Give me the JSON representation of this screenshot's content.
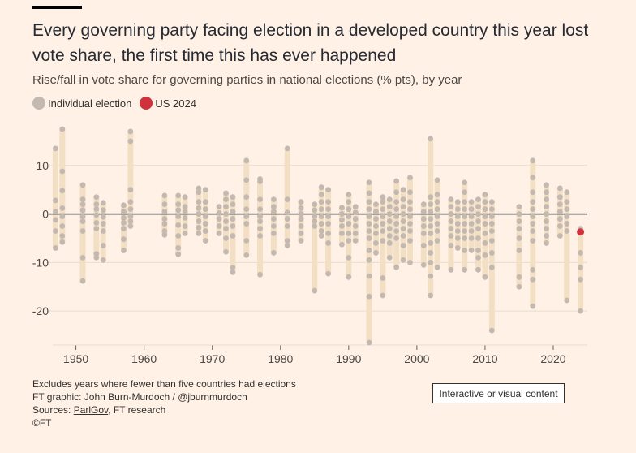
{
  "header": {
    "title": "Every governing party facing election in a developed country this year lost vote share, the first time this has ever happened",
    "subtitle": "Rise/fall in vote share for governing parties in national elections (% pts), by year"
  },
  "legend": {
    "items": [
      {
        "label": "Individual election",
        "color": "#c4b9b0"
      },
      {
        "label": "US 2024",
        "color": "#d0313d"
      }
    ]
  },
  "colors": {
    "background": "#fff1e5",
    "range_bar": "#f2dfc4",
    "dot": "#c4b9b0",
    "highlight": "#d0313d",
    "grid": "#e9dccf",
    "zero_line": "#33302e"
  },
  "chart_data": {
    "type": "scatter",
    "xlim": [
      1946,
      2025
    ],
    "ylim": [
      -27,
      19
    ],
    "x_ticks": [
      "1950",
      "1960",
      "1970",
      "1980",
      "1990",
      "2000",
      "2010",
      "2020"
    ],
    "y_ticks": [
      "10",
      "0",
      "-10",
      "-20"
    ],
    "grid": true,
    "legend_position": "top-left",
    "series": [
      {
        "name": "Individual election",
        "points": [
          {
            "year": 1947,
            "values": [
              13.5,
              2.8,
              0.5,
              -1.2,
              -3.5,
              -7
            ]
          },
          {
            "year": 1948,
            "values": [
              17.5,
              8.8,
              4.8,
              1.2,
              -0.5,
              -2.5,
              -4.5,
              -5.8
            ]
          },
          {
            "year": 1951,
            "values": [
              6,
              3,
              2,
              0.8,
              -0.5,
              -1.5,
              -3.5,
              -9,
              -13.8
            ]
          },
          {
            "year": 1953,
            "values": [
              3.5,
              2,
              1,
              -0.2,
              -1.8,
              -3,
              -8.2,
              -9
            ]
          },
          {
            "year": 1954,
            "values": [
              2.3,
              0.8,
              -0.6,
              -2,
              -3.5,
              -6.5,
              -9.5
            ]
          },
          {
            "year": 1957,
            "values": [
              1.8,
              0.5,
              -0.8,
              -1.8,
              -3,
              -5.2,
              -7.5
            ]
          },
          {
            "year": 1958,
            "values": [
              17,
              15,
              5,
              2.5,
              1,
              -0.5,
              -1.5,
              -2.5
            ]
          },
          {
            "year": 1963,
            "values": [
              3.8,
              2,
              0.5,
              -1,
              -2,
              -3.5,
              -4.3
            ]
          },
          {
            "year": 1965,
            "values": [
              3.8,
              2,
              0.8,
              -0.5,
              -2.3,
              -4.5,
              -7,
              -8.3
            ]
          },
          {
            "year": 1966,
            "values": [
              3.5,
              1.5,
              0.5,
              -0.8,
              -2.5,
              -4
            ]
          },
          {
            "year": 1968,
            "values": [
              5.3,
              4.5,
              2.5,
              1.2,
              0,
              -1.5,
              -2.8,
              -4
            ]
          },
          {
            "year": 1969,
            "values": [
              5,
              2.5,
              1,
              -0.5,
              -2,
              -3.5,
              -5.5
            ]
          },
          {
            "year": 1971,
            "values": [
              1.5,
              0.2,
              -1,
              -2.5,
              -4
            ]
          },
          {
            "year": 1972,
            "values": [
              4.3,
              3,
              1.5,
              0,
              -1.5,
              -3,
              -5,
              -7.8
            ]
          },
          {
            "year": 1973,
            "values": [
              3.5,
              2,
              0.5,
              -1,
              -2.5,
              -4.5,
              -11,
              -12
            ]
          },
          {
            "year": 1975,
            "values": [
              11,
              7,
              3.5,
              1,
              -0.5,
              -2,
              -5.5,
              -8.5
            ]
          },
          {
            "year": 1977,
            "values": [
              7.2,
              6.7,
              3,
              1,
              -0.5,
              -1.5,
              -3,
              -4.5,
              -12.5
            ]
          },
          {
            "year": 1979,
            "values": [
              3,
              1.5,
              0.5,
              -1,
              -2.5,
              -4,
              -8
            ]
          },
          {
            "year": 1981,
            "values": [
              13.5,
              3,
              0.3,
              -1,
              -2.5,
              -5.5,
              -6.5
            ]
          },
          {
            "year": 1983,
            "values": [
              2.5,
              1.2,
              0,
              -1,
              -2.5,
              -4,
              -5.5
            ]
          },
          {
            "year": 1985,
            "values": [
              2,
              0.8,
              -0.5,
              -1.5,
              -2.5,
              -15.8
            ]
          },
          {
            "year": 1986,
            "values": [
              5.5,
              4,
              2.5,
              1,
              -0.5,
              -2,
              -3.5,
              -4.5
            ]
          },
          {
            "year": 1987,
            "values": [
              5,
              2.5,
              1,
              -0.5,
              -2,
              -4,
              -6,
              -12.3
            ]
          },
          {
            "year": 1989,
            "values": [
              1.3,
              0,
              -1.2,
              -2.5,
              -4,
              -6.3
            ]
          },
          {
            "year": 1990,
            "values": [
              4,
              2.5,
              1,
              -0.5,
              -2,
              -4,
              -5.5,
              -9,
              -13
            ]
          },
          {
            "year": 1991,
            "values": [
              1.5,
              0.3,
              -1,
              -2.5,
              -4,
              -5.5
            ]
          },
          {
            "year": 1993,
            "values": [
              6.5,
              4.3,
              2.5,
              1,
              -0.5,
              -2,
              -3.5,
              -5,
              -7.5,
              -9.5,
              -12.8,
              -17,
              -26.5
            ]
          },
          {
            "year": 1994,
            "values": [
              2,
              0.5,
              -1,
              -2.5,
              -4,
              -6,
              -8
            ]
          },
          {
            "year": 1995,
            "values": [
              3.5,
              2.5,
              1,
              -0.5,
              -2,
              -3.5,
              -5.5,
              -13.2,
              -16.8
            ]
          },
          {
            "year": 1996,
            "values": [
              3,
              1.5,
              0,
              -1.5,
              -3,
              -4.5,
              -6,
              -9
            ]
          },
          {
            "year": 1997,
            "values": [
              6.8,
              4.5,
              2.5,
              1,
              -0.5,
              -2,
              -3.5,
              -5,
              -11
            ]
          },
          {
            "year": 1998,
            "values": [
              5,
              3,
              1.5,
              0,
              -1.5,
              -3,
              -4.5,
              -6.5,
              -9.5
            ]
          },
          {
            "year": 1999,
            "values": [
              7.5,
              4.5,
              2.5,
              1,
              -0.5,
              -2,
              -3.5,
              -5.5,
              -10
            ]
          },
          {
            "year": 2001,
            "values": [
              2,
              0.5,
              -1,
              -2.5,
              -4,
              -6.5,
              -10.5
            ]
          },
          {
            "year": 2002,
            "values": [
              15.5,
              3.5,
              2,
              0.5,
              -1,
              -2.5,
              -4,
              -6,
              -8,
              -10,
              -12.8,
              -16.8
            ]
          },
          {
            "year": 2003,
            "values": [
              7,
              4,
              2.5,
              1,
              -0.5,
              -2,
              -3.5,
              -5.5,
              -11
            ]
          },
          {
            "year": 2005,
            "values": [
              3,
              1.5,
              0,
              -1.5,
              -3,
              -4.5,
              -6.5,
              -11.5
            ]
          },
          {
            "year": 2006,
            "values": [
              2.5,
              1,
              -0.5,
              -2,
              -3.5,
              -5,
              -7
            ]
          },
          {
            "year": 2007,
            "values": [
              6.5,
              4.5,
              2.5,
              1,
              -0.5,
              -2,
              -3.5,
              -5,
              -7.5,
              -11.5
            ]
          },
          {
            "year": 2008,
            "values": [
              2.5,
              1,
              -0.5,
              -2,
              -3.5,
              -5,
              -7.5
            ]
          },
          {
            "year": 2009,
            "values": [
              3,
              1.5,
              0,
              -1.5,
              -3,
              -5,
              -7.5,
              -9,
              -11.5
            ]
          },
          {
            "year": 2010,
            "values": [
              4,
              2.5,
              1,
              -0.5,
              -2,
              -4,
              -6,
              -8.5,
              -13
            ]
          },
          {
            "year": 2011,
            "values": [
              2.5,
              1,
              -0.5,
              -2,
              -3.5,
              -5.5,
              -8,
              -11,
              -24
            ]
          },
          {
            "year": 2015,
            "values": [
              1.5,
              0,
              -1.5,
              -3,
              -5,
              -7.5,
              -13,
              -15
            ]
          },
          {
            "year": 2017,
            "values": [
              11,
              7.5,
              4.5,
              2.5,
              1,
              -0.5,
              -2,
              -3.5,
              -5.5,
              -11.5,
              -13.5,
              -19
            ]
          },
          {
            "year": 2019,
            "values": [
              6,
              4.5,
              3,
              1.5,
              0,
              -1.5,
              -3,
              -4.5,
              -6
            ]
          },
          {
            "year": 2021,
            "values": [
              5.3,
              3.5,
              2,
              0.5,
              -1,
              -2.5,
              -4.5
            ]
          },
          {
            "year": 2022,
            "values": [
              4.5,
              2.5,
              1,
              -0.5,
              -2,
              -3.5,
              -17.8
            ]
          },
          {
            "year": 2024,
            "values": [
              -3,
              -8,
              -11,
              -13.5,
              -20
            ]
          }
        ]
      },
      {
        "name": "US 2024",
        "points": [
          {
            "year": 2024,
            "values": [
              -3.7
            ]
          }
        ]
      }
    ]
  },
  "footer": {
    "note": "Excludes years where fewer than five countries had elections",
    "credit": "FT graphic: John Burn-Murdoch / @jburnmurdoch",
    "sources_prefix": "Sources: ",
    "sources_link": "ParlGov",
    "sources_suffix": ", FT research",
    "copyright": "©FT"
  },
  "controls": {
    "interactive_button": "Interactive or visual content"
  }
}
